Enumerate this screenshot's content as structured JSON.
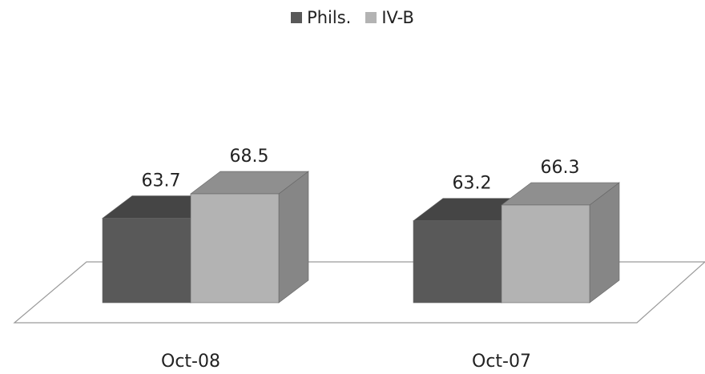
{
  "chart_data": {
    "type": "bar",
    "style": "3d",
    "categories": [
      "Oct-08",
      "Oct-07"
    ],
    "series": [
      {
        "name": "Phils.",
        "values": [
          63.7,
          63.2
        ],
        "color": "#595959"
      },
      {
        "name": "IV-B",
        "values": [
          68.5,
          66.3
        ],
        "color": "#b3b3b3"
      }
    ],
    "legend_position": "top-center",
    "data_labels": true,
    "grid": false
  }
}
